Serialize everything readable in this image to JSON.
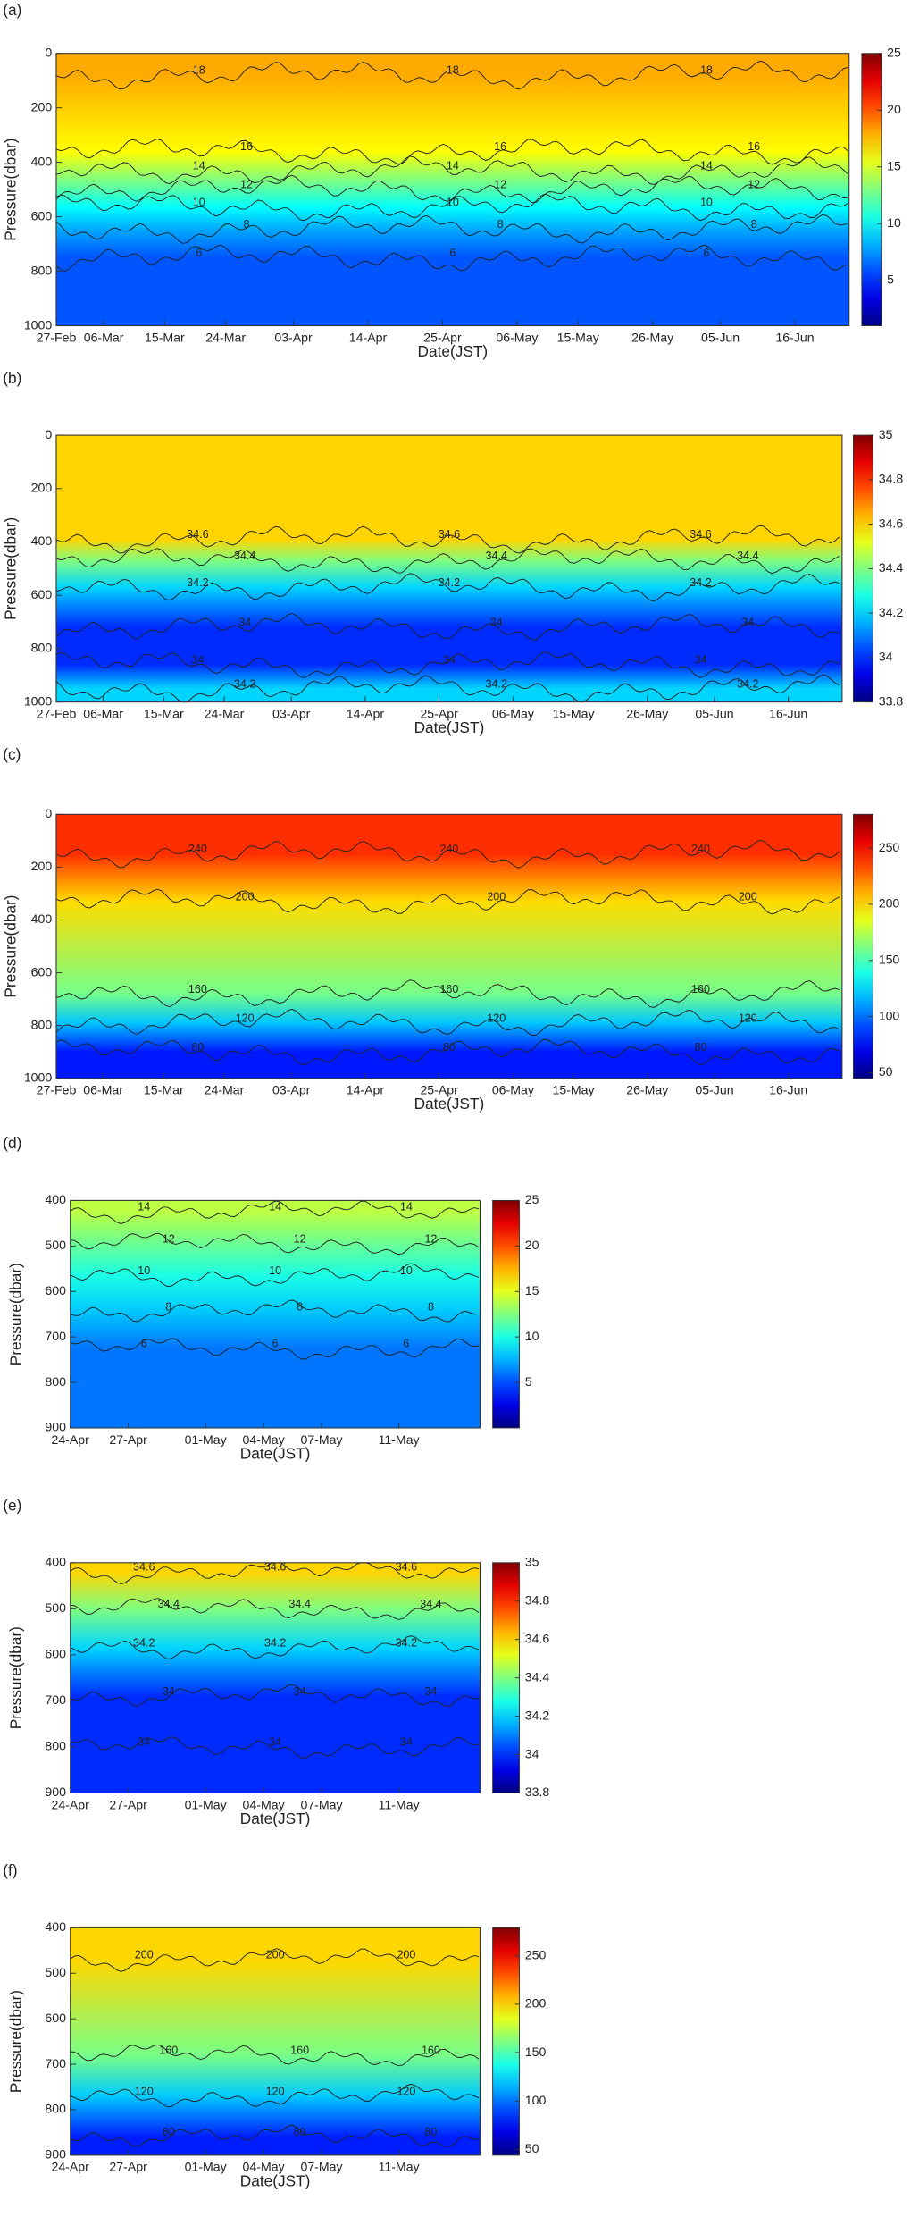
{
  "chart_data": [
    {
      "type": "contour",
      "panel_label": "(a)",
      "xlabel": "Date(JST)",
      "ylabel": "Pressure(dbar)",
      "xlim": [
        0,
        117
      ],
      "xticks": [
        {
          "value": 0,
          "label": "27-Feb"
        },
        {
          "value": 7,
          "label": "06-Mar"
        },
        {
          "value": 16,
          "label": "15-Mar"
        },
        {
          "value": 25,
          "label": "24-Mar"
        },
        {
          "value": 35,
          "label": "03-Apr"
        },
        {
          "value": 46,
          "label": "14-Apr"
        },
        {
          "value": 57,
          "label": "25-Apr"
        },
        {
          "value": 68,
          "label": "06-May"
        },
        {
          "value": 77,
          "label": "15-May"
        },
        {
          "value": 88,
          "label": "26-May"
        },
        {
          "value": 98,
          "label": "05-Jun"
        },
        {
          "value": 109,
          "label": "16-Jun"
        }
      ],
      "ylim": [
        0,
        1000
      ],
      "yticks": [
        0,
        200,
        400,
        600,
        800,
        1000
      ],
      "y_reversed": true,
      "clim": [
        1,
        25
      ],
      "cticks": [
        5,
        10,
        15,
        20,
        25
      ],
      "contours": [
        {
          "level": 18,
          "pressure": 80
        },
        {
          "level": 16,
          "pressure": 360
        },
        {
          "level": 14,
          "pressure": 430
        },
        {
          "level": 12,
          "pressure": 500
        },
        {
          "level": 10,
          "pressure": 565
        },
        {
          "level": 8,
          "pressure": 645
        },
        {
          "level": 6,
          "pressure": 750
        }
      ]
    },
    {
      "type": "contour",
      "panel_label": "(b)",
      "xlabel": "Date(JST)",
      "ylabel": "Pressure(dbar)",
      "xlim": [
        0,
        117
      ],
      "xticks": [
        {
          "value": 0,
          "label": "27-Feb"
        },
        {
          "value": 7,
          "label": "06-Mar"
        },
        {
          "value": 16,
          "label": "15-Mar"
        },
        {
          "value": 25,
          "label": "24-Mar"
        },
        {
          "value": 35,
          "label": "03-Apr"
        },
        {
          "value": 46,
          "label": "14-Apr"
        },
        {
          "value": 57,
          "label": "25-Apr"
        },
        {
          "value": 68,
          "label": "06-May"
        },
        {
          "value": 77,
          "label": "15-May"
        },
        {
          "value": 88,
          "label": "26-May"
        },
        {
          "value": 98,
          "label": "05-Jun"
        },
        {
          "value": 109,
          "label": "16-Jun"
        }
      ],
      "ylim": [
        0,
        1000
      ],
      "yticks": [
        0,
        200,
        400,
        600,
        800,
        1000
      ],
      "y_reversed": true,
      "clim": [
        33.8,
        35
      ],
      "cticks": [
        33.8,
        34,
        34.2,
        34.4,
        34.6,
        34.8,
        35
      ],
      "contours": [
        {
          "level": 34.6,
          "pressure": 390
        },
        {
          "level": 34.4,
          "pressure": 470
        },
        {
          "level": 34.2,
          "pressure": 570
        },
        {
          "level": 34,
          "pressure": 720
        },
        {
          "level": 34,
          "pressure": 860
        },
        {
          "level": 34.2,
          "pressure": 950
        }
      ]
    },
    {
      "type": "contour",
      "panel_label": "(c)",
      "xlabel": "Date(JST)",
      "ylabel": "Pressure(dbar)",
      "xlim": [
        0,
        117
      ],
      "xticks": [
        {
          "value": 0,
          "label": "27-Feb"
        },
        {
          "value": 7,
          "label": "06-Mar"
        },
        {
          "value": 16,
          "label": "15-Mar"
        },
        {
          "value": 25,
          "label": "24-Mar"
        },
        {
          "value": 35,
          "label": "03-Apr"
        },
        {
          "value": 46,
          "label": "14-Apr"
        },
        {
          "value": 57,
          "label": "25-Apr"
        },
        {
          "value": 68,
          "label": "06-May"
        },
        {
          "value": 77,
          "label": "15-May"
        },
        {
          "value": 88,
          "label": "26-May"
        },
        {
          "value": 98,
          "label": "05-Jun"
        },
        {
          "value": 109,
          "label": "16-Jun"
        }
      ],
      "ylim": [
        0,
        1000
      ],
      "yticks": [
        0,
        200,
        400,
        600,
        800,
        1000
      ],
      "y_reversed": true,
      "clim": [
        45,
        280
      ],
      "cticks": [
        50,
        100,
        150,
        200,
        250
      ],
      "contours": [
        {
          "level": 240,
          "pressure": 150
        },
        {
          "level": 200,
          "pressure": 330
        },
        {
          "level": 160,
          "pressure": 680
        },
        {
          "level": 120,
          "pressure": 790
        },
        {
          "level": 80,
          "pressure": 900
        }
      ]
    },
    {
      "type": "contour",
      "panel_label": "(d)",
      "xlabel": "Date(JST)",
      "ylabel": "Pressure(dbar)",
      "xlim": [
        0,
        21.2
      ],
      "xticks": [
        {
          "value": 0,
          "label": "24-Apr"
        },
        {
          "value": 3,
          "label": "27-Apr"
        },
        {
          "value": 7,
          "label": "01-May"
        },
        {
          "value": 10,
          "label": "04-May"
        },
        {
          "value": 13,
          "label": "07-May"
        },
        {
          "value": 17,
          "label": "11-May"
        }
      ],
      "ylim": [
        400,
        900
      ],
      "yticks": [
        400,
        500,
        600,
        700,
        800,
        900
      ],
      "y_reversed": true,
      "clim": [
        0,
        25
      ],
      "cticks": [
        5,
        10,
        15,
        20,
        25
      ],
      "contours": [
        {
          "level": 14,
          "pressure": 425
        },
        {
          "level": 12,
          "pressure": 495
        },
        {
          "level": 10,
          "pressure": 565
        },
        {
          "level": 8,
          "pressure": 645
        },
        {
          "level": 6,
          "pressure": 725
        }
      ]
    },
    {
      "type": "contour",
      "panel_label": "(e)",
      "xlabel": "Date(JST)",
      "ylabel": "Pressure(dbar)",
      "xlim": [
        0,
        21.2
      ],
      "xticks": [
        {
          "value": 0,
          "label": "24-Apr"
        },
        {
          "value": 3,
          "label": "27-Apr"
        },
        {
          "value": 7,
          "label": "01-May"
        },
        {
          "value": 10,
          "label": "04-May"
        },
        {
          "value": 13,
          "label": "07-May"
        },
        {
          "value": 17,
          "label": "11-May"
        }
      ],
      "ylim": [
        400,
        900
      ],
      "yticks": [
        400,
        500,
        600,
        700,
        800,
        900
      ],
      "y_reversed": true,
      "clim": [
        33.8,
        35
      ],
      "cticks": [
        33.8,
        34,
        34.2,
        34.4,
        34.6,
        34.8,
        35
      ],
      "contours": [
        {
          "level": 34.6,
          "pressure": 420
        },
        {
          "level": 34.4,
          "pressure": 500
        },
        {
          "level": 34.2,
          "pressure": 585
        },
        {
          "level": 34,
          "pressure": 690
        },
        {
          "level": 34,
          "pressure": 800
        }
      ]
    },
    {
      "type": "contour",
      "panel_label": "(f)",
      "xlabel": "Date(JST)",
      "ylabel": "Pressure(dbar)",
      "xlim": [
        0,
        21.2
      ],
      "xticks": [
        {
          "value": 0,
          "label": "24-Apr"
        },
        {
          "value": 3,
          "label": "27-Apr"
        },
        {
          "value": 7,
          "label": "01-May"
        },
        {
          "value": 10,
          "label": "04-May"
        },
        {
          "value": 13,
          "label": "07-May"
        },
        {
          "value": 17,
          "label": "11-May"
        }
      ],
      "ylim": [
        400,
        900
      ],
      "yticks": [
        400,
        500,
        600,
        700,
        800,
        900
      ],
      "y_reversed": true,
      "clim": [
        44,
        279
      ],
      "cticks": [
        50,
        100,
        150,
        200,
        250
      ],
      "contours": [
        {
          "level": 200,
          "pressure": 470
        },
        {
          "level": 160,
          "pressure": 680
        },
        {
          "level": 120,
          "pressure": 770
        },
        {
          "level": 80,
          "pressure": 860
        }
      ]
    }
  ]
}
